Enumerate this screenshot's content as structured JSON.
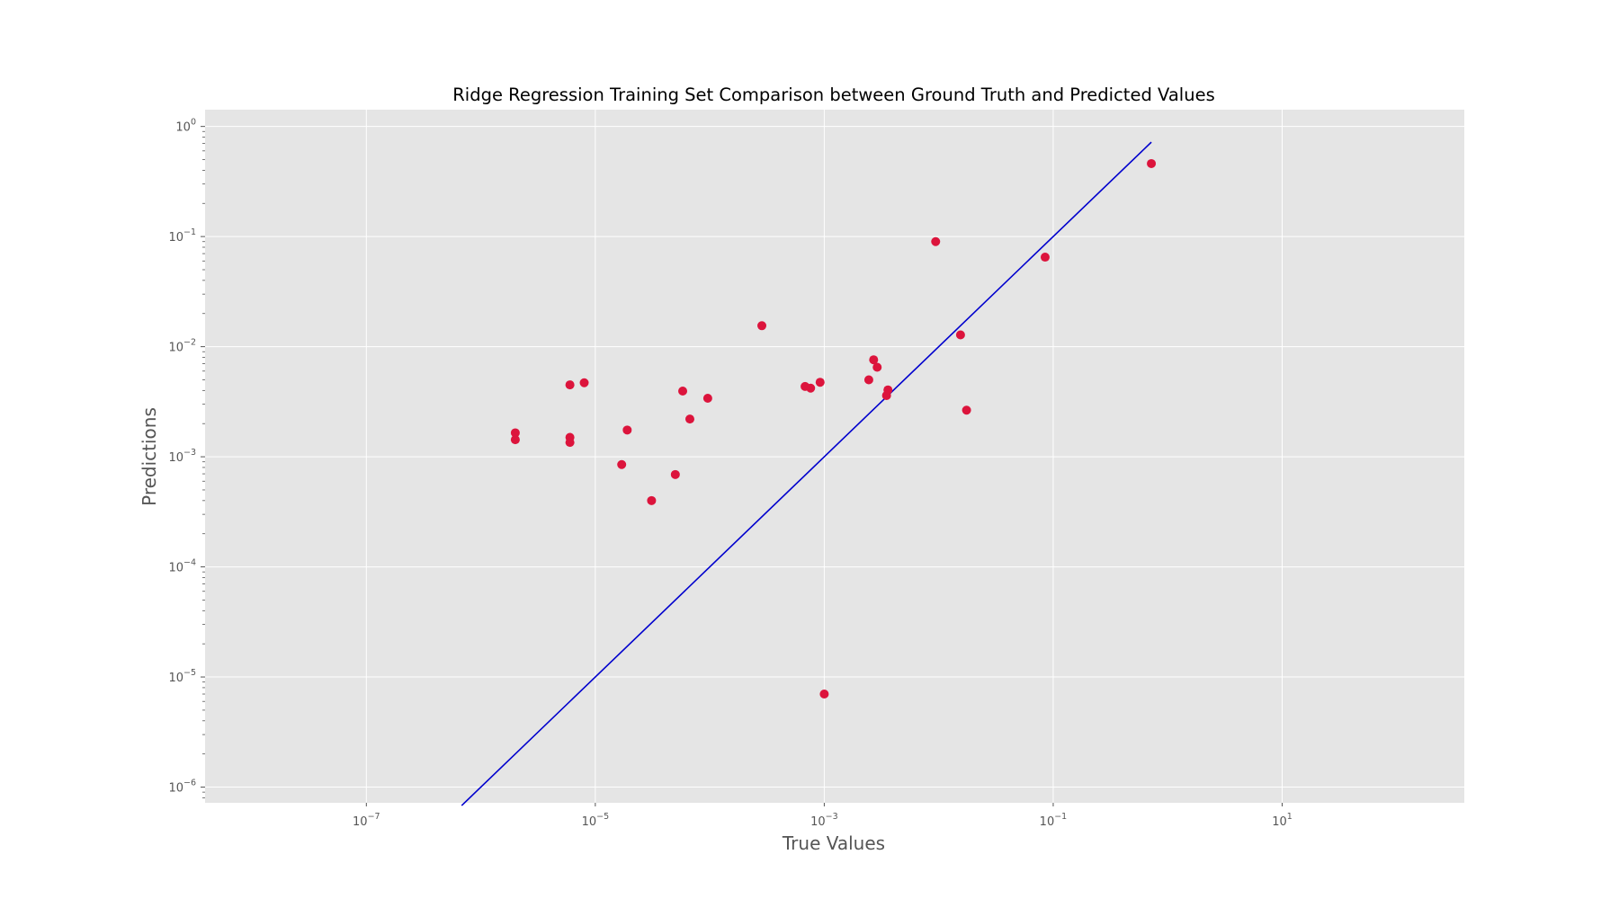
{
  "colors": {
    "plot_background": "#e5e5e5",
    "grid": "#ffffff",
    "points": "#dc143c",
    "reference_line": "#0000cd",
    "tick_text": "#555555",
    "title_text": "#000000"
  },
  "chart_data": {
    "type": "scatter",
    "title": "Ridge Regression Training Set Comparison between Ground Truth and Predicted Values",
    "xlabel": "True Values",
    "ylabel": "Predictions",
    "xscale": "log",
    "yscale": "log",
    "xlim": [
      3.9e-09,
      390.0
    ],
    "ylim": [
      7.2e-07,
      1.42
    ],
    "grid": true,
    "x_ticks": [
      {
        "value": 1e-07,
        "base": "10",
        "exp": "−7"
      },
      {
        "value": 1e-05,
        "base": "10",
        "exp": "−5"
      },
      {
        "value": 0.001,
        "base": "10",
        "exp": "−3"
      },
      {
        "value": 0.1,
        "base": "10",
        "exp": "−1"
      },
      {
        "value": 10,
        "base": "10",
        "exp": "1"
      }
    ],
    "y_ticks": [
      {
        "value": 1e-06,
        "base": "10",
        "exp": "−6"
      },
      {
        "value": 1e-05,
        "base": "10",
        "exp": "−5"
      },
      {
        "value": 0.0001,
        "base": "10",
        "exp": "−4"
      },
      {
        "value": 0.001,
        "base": "10",
        "exp": "−3"
      },
      {
        "value": 0.01,
        "base": "10",
        "exp": "−2"
      },
      {
        "value": 0.1,
        "base": "10",
        "exp": "−1"
      },
      {
        "value": 1,
        "base": "10",
        "exp": "0"
      }
    ],
    "reference_line": {
      "from": [
        6.8e-07,
        6.8e-07
      ],
      "to": [
        0.72,
        0.72
      ]
    },
    "points": [
      {
        "x": 2e-06,
        "y": 0.00165
      },
      {
        "x": 2e-06,
        "y": 0.00143
      },
      {
        "x": 6e-06,
        "y": 0.0045
      },
      {
        "x": 6e-06,
        "y": 0.0015
      },
      {
        "x": 6e-06,
        "y": 0.00135
      },
      {
        "x": 8e-06,
        "y": 0.0047
      },
      {
        "x": 1.7e-05,
        "y": 0.00085
      },
      {
        "x": 1.9e-05,
        "y": 0.00175
      },
      {
        "x": 3.1e-05,
        "y": 0.0004
      },
      {
        "x": 5e-05,
        "y": 0.00069
      },
      {
        "x": 5.8e-05,
        "y": 0.00395
      },
      {
        "x": 6.7e-05,
        "y": 0.0022
      },
      {
        "x": 9.6e-05,
        "y": 0.0034
      },
      {
        "x": 0.000285,
        "y": 0.0155
      },
      {
        "x": 0.00068,
        "y": 0.00435
      },
      {
        "x": 0.00076,
        "y": 0.0042
      },
      {
        "x": 0.00092,
        "y": 0.00475
      },
      {
        "x": 0.001,
        "y": 7e-06
      },
      {
        "x": 0.00245,
        "y": 0.005
      },
      {
        "x": 0.0027,
        "y": 0.0076
      },
      {
        "x": 0.0029,
        "y": 0.0065
      },
      {
        "x": 0.0036,
        "y": 0.00405
      },
      {
        "x": 0.0035,
        "y": 0.0036
      },
      {
        "x": 0.0094,
        "y": 0.09
      },
      {
        "x": 0.0155,
        "y": 0.0128
      },
      {
        "x": 0.0175,
        "y": 0.00265
      },
      {
        "x": 0.085,
        "y": 0.065
      },
      {
        "x": 0.72,
        "y": 0.46
      }
    ]
  }
}
